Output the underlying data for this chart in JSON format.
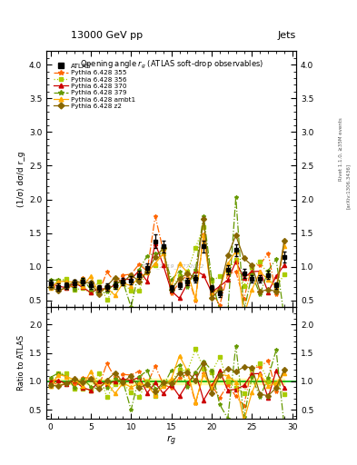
{
  "title_top": "13000 GeV pp",
  "title_right": "Jets",
  "plot_title": "Opening angle $r_g$ (ATLAS soft-drop observables)",
  "xlabel": "$r_g$",
  "ylabel_main": "(1/σ) dσ/d r_g",
  "ylabel_ratio": "Ratio to ATLAS",
  "watermark": "ATLAS_2019_I1772062",
  "right_label_top": "Rivet 1.1.0, ≥35M events",
  "right_label_bot": "[arXiv:1306.3436]",
  "ylim_main": [
    0.4,
    4.2
  ],
  "ylim_ratio": [
    0.35,
    2.3
  ],
  "xlim": [
    -0.5,
    30.5
  ],
  "yticks_main": [
    0.5,
    1.0,
    1.5,
    2.0,
    2.5,
    3.0,
    3.5,
    4.0
  ],
  "yticks_ratio": [
    0.5,
    1.0,
    1.5,
    2.0
  ],
  "xticks": [
    0,
    5,
    10,
    15,
    20,
    25,
    30
  ],
  "colors": {
    "ATLAS": "#000000",
    "355": "#ff6600",
    "356": "#aacc00",
    "370": "#cc0000",
    "379": "#669900",
    "ambt1": "#ffaa00",
    "z2": "#886600"
  },
  "background_color": "#ffffff",
  "ratio_band_color": "#ffffaa",
  "ratio_line_color": "#00aa00"
}
